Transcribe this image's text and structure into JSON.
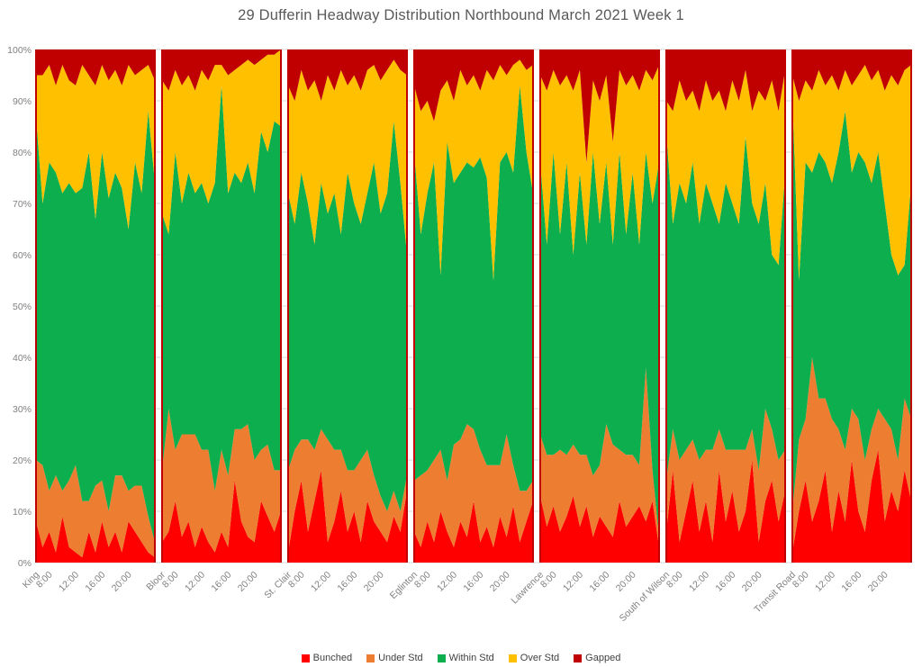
{
  "chart_data": {
    "type": "area",
    "subtype": "100-percent-stacked-area-small-multiples",
    "title": "29 Dufferin  Headway Distribution Northbound March 2021 Week 1",
    "xlabel": "",
    "ylabel": "",
    "ylim": [
      0,
      100
    ],
    "grid": true,
    "legend_position": "bottom",
    "y_tick_labels": [
      "0%",
      "10%",
      "20%",
      "30%",
      "40%",
      "50%",
      "60%",
      "70%",
      "80%",
      "90%",
      "100%"
    ],
    "time_tick_labels": [
      "8:00",
      "12:00",
      "16:00",
      "20:00"
    ],
    "series_names": [
      "Bunched",
      "Under Std",
      "Within Std",
      "Over Std",
      "Gapped"
    ],
    "series_colors": {
      "bunched": "#FF0000",
      "under_std": "#ED7D31",
      "within_std": "#0CAE4E",
      "over_std": "#FFC000",
      "gapped": "#C00000"
    },
    "panel_separator_color": "#C00000",
    "gridline_color": "#D9D9D9",
    "axis_label_color": "#808080",
    "title_color": "#595959",
    "panels": [
      {
        "station": "King",
        "bunched": [
          8,
          3,
          6,
          2,
          9,
          3,
          2,
          1,
          6,
          2,
          8,
          3,
          6,
          2,
          8,
          6,
          4,
          2,
          1
        ],
        "under_std": [
          12,
          16,
          8,
          15,
          5,
          13,
          17,
          11,
          6,
          13,
          8,
          7,
          11,
          15,
          6,
          9,
          11,
          7,
          3
        ],
        "within_std": [
          67,
          51,
          64,
          59,
          58,
          58,
          53,
          61,
          68,
          52,
          64,
          61,
          59,
          56,
          51,
          63,
          57,
          79,
          70
        ],
        "over_std": [
          8,
          25,
          19,
          17,
          25,
          20,
          21,
          24,
          15,
          26,
          17,
          23,
          20,
          20,
          32,
          17,
          24,
          9,
          20
        ],
        "gapped": [
          5,
          5,
          3,
          7,
          3,
          6,
          7,
          3,
          5,
          7,
          3,
          6,
          4,
          7,
          3,
          5,
          4,
          3,
          6
        ]
      },
      {
        "station": "Bloor",
        "bunched": [
          4,
          6,
          12,
          5,
          8,
          3,
          7,
          4,
          2,
          6,
          3,
          16,
          8,
          5,
          4,
          12,
          9,
          6,
          10
        ],
        "under_std": [
          14,
          24,
          10,
          20,
          17,
          22,
          15,
          18,
          12,
          16,
          14,
          10,
          18,
          22,
          16,
          10,
          14,
          12,
          8
        ],
        "within_std": [
          50,
          34,
          58,
          45,
          51,
          47,
          52,
          48,
          60,
          71,
          55,
          50,
          48,
          51,
          52,
          62,
          57,
          68,
          67
        ],
        "over_std": [
          26,
          28,
          16,
          23,
          19,
          20,
          22,
          24,
          23,
          4,
          23,
          20,
          23,
          20,
          25,
          14,
          19,
          13,
          15
        ],
        "gapped": [
          6,
          8,
          4,
          7,
          5,
          8,
          4,
          6,
          3,
          3,
          5,
          4,
          3,
          2,
          3,
          2,
          1,
          1,
          0
        ]
      },
      {
        "station": "St. Clair",
        "bunched": [
          2,
          10,
          16,
          6,
          12,
          18,
          4,
          8,
          14,
          6,
          10,
          4,
          12,
          8,
          6,
          4,
          9,
          6,
          14
        ],
        "under_std": [
          16,
          12,
          8,
          18,
          10,
          8,
          20,
          14,
          8,
          12,
          8,
          16,
          10,
          9,
          7,
          6,
          5,
          4,
          3
        ],
        "within_std": [
          54,
          44,
          52,
          46,
          40,
          48,
          44,
          50,
          42,
          58,
          52,
          46,
          50,
          61,
          55,
          62,
          72,
          64,
          43
        ],
        "over_std": [
          21,
          24,
          20,
          22,
          32,
          16,
          27,
          20,
          32,
          17,
          25,
          26,
          24,
          19,
          26,
          24,
          12,
          22,
          35
        ],
        "gapped": [
          7,
          10,
          4,
          8,
          6,
          10,
          5,
          8,
          4,
          7,
          5,
          8,
          4,
          3,
          6,
          4,
          2,
          4,
          5
        ]
      },
      {
        "station": "Eglinton",
        "bunched": [
          6,
          3,
          8,
          4,
          10,
          6,
          3,
          8,
          5,
          12,
          4,
          7,
          3,
          9,
          5,
          11,
          4,
          8,
          12
        ],
        "under_std": [
          10,
          14,
          10,
          16,
          12,
          10,
          20,
          16,
          22,
          14,
          18,
          12,
          16,
          10,
          20,
          8,
          10,
          6,
          4
        ],
        "within_std": [
          64,
          47,
          54,
          58,
          34,
          66,
          51,
          52,
          51,
          51,
          57,
          56,
          36,
          59,
          55,
          57,
          79,
          66,
          56
        ],
        "over_std": [
          13,
          24,
          18,
          8,
          36,
          12,
          16,
          20,
          15,
          18,
          13,
          21,
          39,
          19,
          15,
          21,
          5,
          16,
          25
        ],
        "gapped": [
          7,
          12,
          10,
          14,
          8,
          6,
          10,
          4,
          7,
          5,
          8,
          4,
          6,
          3,
          5,
          3,
          2,
          4,
          3
        ]
      },
      {
        "station": "Lawrence",
        "bunched": [
          13,
          7,
          11,
          6,
          9,
          13,
          7,
          11,
          5,
          9,
          7,
          5,
          12,
          7,
          9,
          11,
          8,
          12,
          3
        ],
        "under_std": [
          12,
          14,
          10,
          16,
          12,
          10,
          14,
          10,
          12,
          10,
          20,
          18,
          10,
          14,
          12,
          8,
          30,
          6,
          2
        ],
        "within_std": [
          53,
          41,
          59,
          42,
          57,
          37,
          55,
          41,
          63,
          47,
          51,
          39,
          58,
          43,
          55,
          43,
          42,
          52,
          73
        ],
        "over_std": [
          17,
          30,
          16,
          29,
          17,
          32,
          20,
          16,
          14,
          24,
          17,
          20,
          16,
          29,
          19,
          30,
          16,
          24,
          19
        ],
        "gapped": [
          5,
          8,
          4,
          7,
          5,
          8,
          4,
          22,
          6,
          10,
          5,
          18,
          4,
          7,
          5,
          8,
          4,
          6,
          3
        ]
      },
      {
        "station": "South of Wilson",
        "bunched": [
          6,
          18,
          4,
          10,
          16,
          6,
          12,
          4,
          18,
          8,
          14,
          6,
          10,
          20,
          4,
          12,
          16,
          8,
          14
        ],
        "under_std": [
          10,
          8,
          16,
          12,
          8,
          14,
          10,
          18,
          8,
          14,
          8,
          16,
          12,
          6,
          14,
          18,
          10,
          12,
          8
        ],
        "within_std": [
          68,
          40,
          54,
          48,
          54,
          46,
          52,
          48,
          40,
          52,
          48,
          44,
          61,
          44,
          48,
          44,
          34,
          38,
          54
        ],
        "over_std": [
          6,
          22,
          20,
          20,
          14,
          22,
          20,
          20,
          26,
          14,
          24,
          24,
          13,
          18,
          26,
          16,
          34,
          30,
          20
        ],
        "gapped": [
          10,
          12,
          6,
          10,
          8,
          12,
          6,
          10,
          8,
          12,
          6,
          10,
          4,
          12,
          8,
          10,
          6,
          12,
          4
        ]
      },
      {
        "station": "Transit Road",
        "bunched": [
          2,
          10,
          16,
          8,
          12,
          18,
          6,
          14,
          8,
          20,
          10,
          6,
          16,
          22,
          8,
          14,
          10,
          18,
          12
        ],
        "under_std": [
          8,
          14,
          12,
          32,
          20,
          14,
          22,
          12,
          14,
          10,
          18,
          14,
          10,
          8,
          20,
          12,
          10,
          14,
          16
        ],
        "within_std": [
          81,
          31,
          50,
          36,
          48,
          46,
          46,
          54,
          66,
          46,
          52,
          58,
          48,
          50,
          42,
          34,
          36,
          26,
          46
        ],
        "over_std": [
          4,
          35,
          16,
          16,
          16,
          15,
          21,
          12,
          8,
          17,
          15,
          19,
          20,
          16,
          22,
          35,
          37,
          38,
          23
        ],
        "gapped": [
          5,
          10,
          6,
          8,
          4,
          7,
          5,
          8,
          4,
          7,
          5,
          3,
          6,
          4,
          8,
          5,
          7,
          4,
          3
        ]
      }
    ]
  },
  "legend": {
    "items": [
      {
        "label": "Bunched",
        "color": "#FF0000"
      },
      {
        "label": "Under Std",
        "color": "#ED7D31"
      },
      {
        "label": "Within Std",
        "color": "#0CAE4E"
      },
      {
        "label": "Over Std",
        "color": "#FFC000"
      },
      {
        "label": "Gapped",
        "color": "#C00000"
      }
    ]
  }
}
